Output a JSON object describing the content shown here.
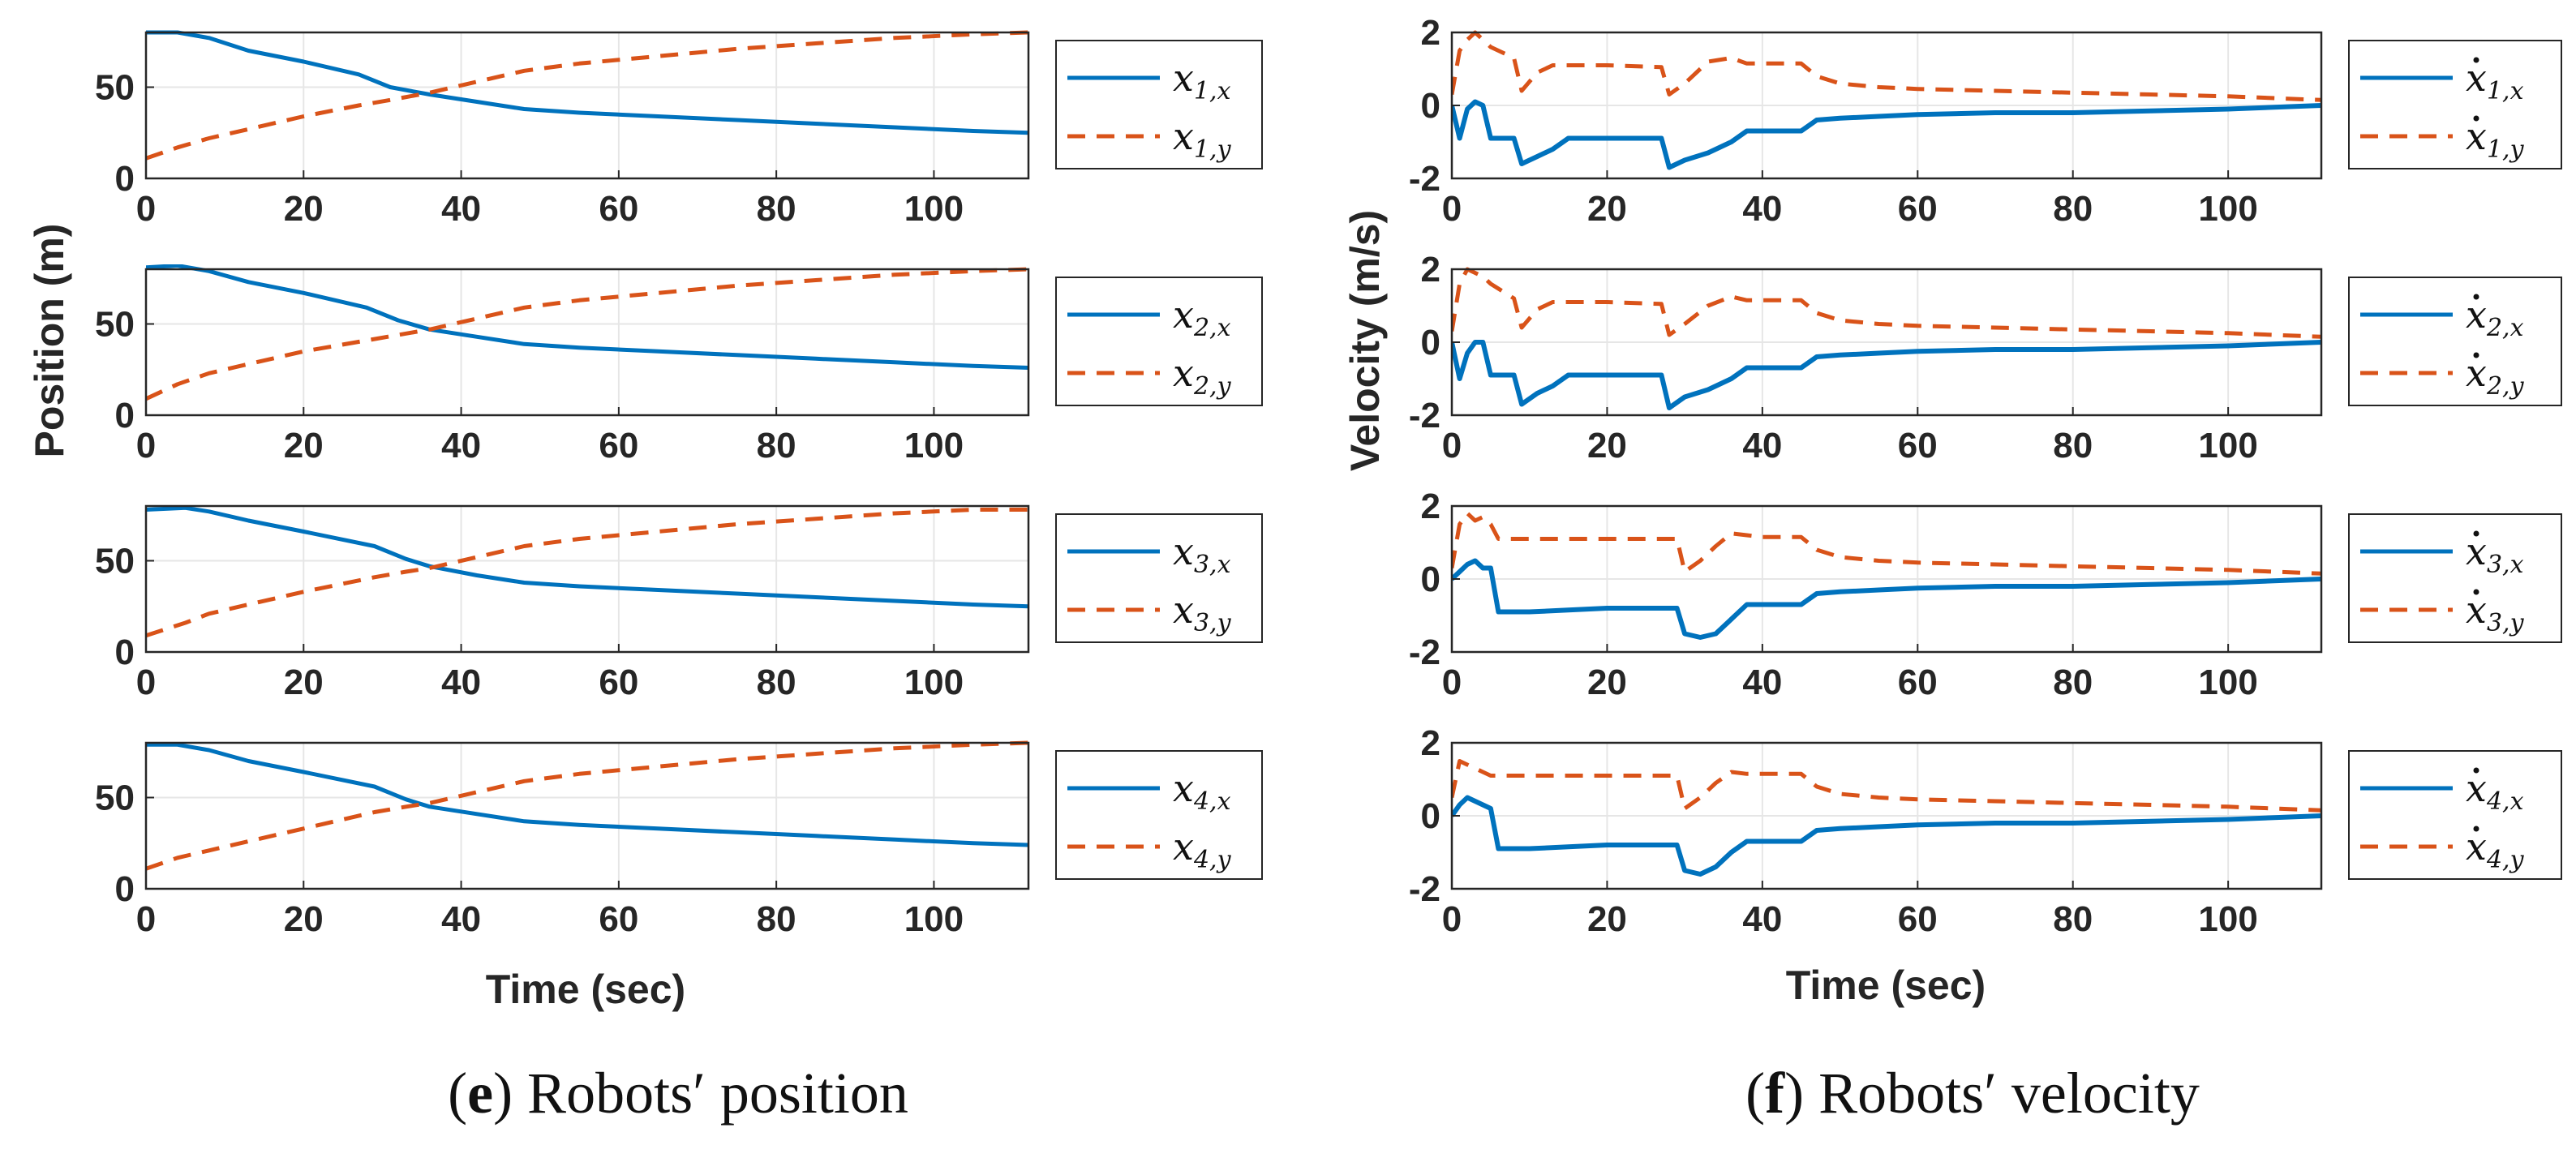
{
  "colors": {
    "x_series": "#0072BD",
    "y_series": "#D95319",
    "grid": "#e6e6e6",
    "axis": "#262626"
  },
  "left_panel": {
    "ylabel": "Position (m)",
    "xlabel": "Time (sec)",
    "caption_letter": "e",
    "caption_text": " Robots′ position"
  },
  "right_panel": {
    "ylabel": "Velocity (m/s)",
    "xlabel": "Time (sec)",
    "caption_letter": "f",
    "caption_text": " Robots′ velocity"
  },
  "chart_data": [
    {
      "type": "line",
      "panel": "e",
      "robot": 1,
      "xlim": [
        0,
        112
      ],
      "ylim": [
        0,
        80
      ],
      "xticks": [
        "0",
        "20",
        "40",
        "60",
        "80",
        "100"
      ],
      "yticks": [
        "0",
        "50"
      ],
      "x": [
        0,
        4,
        8,
        13,
        20,
        27,
        31,
        36,
        42,
        48,
        55,
        65,
        75,
        85,
        95,
        105,
        112
      ],
      "series": [
        {
          "name": "x",
          "sub": "1,x",
          "dot": false,
          "style": "solid",
          "values": [
            80,
            80,
            77,
            70,
            64,
            57,
            50,
            46,
            42,
            38,
            36,
            34,
            32,
            30,
            28,
            26,
            25
          ]
        },
        {
          "name": "x",
          "sub": "1,y",
          "dot": false,
          "style": "dashed",
          "values": [
            11,
            17,
            22,
            27,
            34,
            40,
            43,
            47,
            53,
            59,
            63,
            67,
            71,
            74,
            77,
            79,
            80
          ]
        }
      ]
    },
    {
      "type": "line",
      "panel": "e",
      "robot": 2,
      "xlim": [
        0,
        112
      ],
      "ylim": [
        0,
        80
      ],
      "xticks": [
        "0",
        "20",
        "40",
        "60",
        "80",
        "100"
      ],
      "yticks": [
        "0",
        "50"
      ],
      "x": [
        0,
        4,
        8,
        13,
        20,
        28,
        32,
        36,
        42,
        48,
        55,
        65,
        75,
        85,
        95,
        105,
        112
      ],
      "series": [
        {
          "name": "x",
          "sub": "2,x",
          "dot": false,
          "style": "solid",
          "values": [
            81,
            82,
            79,
            73,
            67,
            59,
            52,
            47,
            43,
            39,
            37,
            35,
            33,
            31,
            29,
            27,
            26
          ]
        },
        {
          "name": "x",
          "sub": "2,y",
          "dot": false,
          "style": "dashed",
          "values": [
            9,
            17,
            23,
            28,
            35,
            41,
            44,
            47,
            53,
            59,
            63,
            67,
            71,
            74,
            77,
            79,
            80
          ]
        }
      ]
    },
    {
      "type": "line",
      "panel": "e",
      "robot": 3,
      "xlim": [
        0,
        112
      ],
      "ylim": [
        0,
        80
      ],
      "xticks": [
        "0",
        "20",
        "40",
        "60",
        "80",
        "100"
      ],
      "yticks": [
        "0",
        "50"
      ],
      "x": [
        0,
        5,
        8,
        13,
        20,
        29,
        33,
        36,
        42,
        48,
        55,
        65,
        75,
        85,
        95,
        105,
        112
      ],
      "series": [
        {
          "name": "x",
          "sub": "3,x",
          "dot": false,
          "style": "solid",
          "values": [
            78,
            79,
            77,
            72,
            66,
            58,
            51,
            47,
            42,
            38,
            36,
            34,
            32,
            30,
            28,
            26,
            25
          ]
        },
        {
          "name": "x",
          "sub": "3,y",
          "dot": false,
          "style": "dashed",
          "values": [
            9,
            16,
            21,
            26,
            33,
            41,
            44,
            46,
            52,
            58,
            62,
            66,
            70,
            73,
            76,
            78,
            78
          ]
        }
      ]
    },
    {
      "type": "line",
      "panel": "e",
      "robot": 4,
      "xlim": [
        0,
        112
      ],
      "ylim": [
        0,
        80
      ],
      "xticks": [
        "0",
        "20",
        "40",
        "60",
        "80",
        "100"
      ],
      "yticks": [
        "0",
        "50"
      ],
      "x": [
        0,
        4,
        8,
        13,
        20,
        29,
        33,
        36,
        42,
        48,
        55,
        65,
        75,
        85,
        95,
        105,
        112
      ],
      "series": [
        {
          "name": "x",
          "sub": "4,x",
          "dot": false,
          "style": "solid",
          "values": [
            79,
            79,
            76,
            70,
            64,
            56,
            49,
            45,
            41,
            37,
            35,
            33,
            31,
            29,
            27,
            25,
            24
          ]
        },
        {
          "name": "x",
          "sub": "4,y",
          "dot": false,
          "style": "dashed",
          "values": [
            11,
            17,
            21,
            26,
            33,
            42,
            45,
            47,
            53,
            59,
            63,
            67,
            71,
            74,
            77,
            79,
            80
          ]
        }
      ]
    },
    {
      "type": "line",
      "panel": "f",
      "robot": 1,
      "xlim": [
        0,
        112
      ],
      "ylim": [
        -2,
        2
      ],
      "xticks": [
        "0",
        "20",
        "40",
        "60",
        "80",
        "100"
      ],
      "yticks": [
        "-2",
        "0",
        "2"
      ],
      "x": [
        0,
        1,
        2,
        3,
        4,
        5,
        8,
        9,
        11,
        13,
        15,
        20,
        27,
        28,
        30,
        33,
        36,
        38,
        40,
        45,
        47,
        50,
        55,
        60,
        70,
        80,
        90,
        100,
        112
      ],
      "series": [
        {
          "name": "x",
          "sub": "1,x",
          "dot": true,
          "style": "solid",
          "values": [
            0,
            -0.9,
            -0.1,
            0.1,
            0,
            -0.9,
            -0.9,
            -1.6,
            -1.4,
            -1.2,
            -0.9,
            -0.9,
            -0.9,
            -1.7,
            -1.5,
            -1.3,
            -1,
            -0.7,
            -0.7,
            -0.7,
            -0.4,
            -0.35,
            -0.3,
            -0.25,
            -0.2,
            -0.2,
            -0.15,
            -0.1,
            0
          ]
        },
        {
          "name": "x",
          "sub": "1,y",
          "dot": true,
          "style": "dashed",
          "values": [
            0.3,
            1.5,
            1.8,
            2,
            1.8,
            1.6,
            1.3,
            0.4,
            0.9,
            1.1,
            1.1,
            1.1,
            1.05,
            0.3,
            0.6,
            1.2,
            1.3,
            1.15,
            1.15,
            1.15,
            0.8,
            0.6,
            0.5,
            0.45,
            0.4,
            0.35,
            0.3,
            0.25,
            0.15
          ]
        }
      ]
    },
    {
      "type": "line",
      "panel": "f",
      "robot": 2,
      "xlim": [
        0,
        112
      ],
      "ylim": [
        -2,
        2
      ],
      "xticks": [
        "0",
        "20",
        "40",
        "60",
        "80",
        "100"
      ],
      "yticks": [
        "-2",
        "0",
        "2"
      ],
      "x": [
        0,
        1,
        2,
        3,
        4,
        5,
        8,
        9,
        11,
        13,
        15,
        20,
        27,
        28,
        30,
        33,
        36,
        38,
        40,
        45,
        47,
        50,
        55,
        60,
        70,
        80,
        90,
        100,
        112
      ],
      "series": [
        {
          "name": "x",
          "sub": "2,x",
          "dot": true,
          "style": "solid",
          "values": [
            0,
            -1,
            -0.3,
            0,
            0,
            -0.9,
            -0.9,
            -1.7,
            -1.4,
            -1.2,
            -0.9,
            -0.9,
            -0.9,
            -1.8,
            -1.5,
            -1.3,
            -1,
            -0.7,
            -0.7,
            -0.7,
            -0.4,
            -0.35,
            -0.3,
            -0.25,
            -0.2,
            -0.2,
            -0.15,
            -0.1,
            0
          ]
        },
        {
          "name": "x",
          "sub": "2,y",
          "dot": true,
          "style": "dashed",
          "values": [
            0.3,
            1.6,
            2,
            1.9,
            1.8,
            1.6,
            1.2,
            0.4,
            0.9,
            1.1,
            1.1,
            1.1,
            1.05,
            0.2,
            0.5,
            1,
            1.25,
            1.15,
            1.15,
            1.15,
            0.8,
            0.6,
            0.5,
            0.45,
            0.4,
            0.35,
            0.3,
            0.25,
            0.15
          ]
        }
      ]
    },
    {
      "type": "line",
      "panel": "f",
      "robot": 3,
      "xlim": [
        0,
        112
      ],
      "ylim": [
        -2,
        2
      ],
      "xticks": [
        "0",
        "20",
        "40",
        "60",
        "80",
        "100"
      ],
      "yticks": [
        "-2",
        "0",
        "2"
      ],
      "x": [
        0,
        1,
        2,
        3,
        4,
        5,
        6,
        7,
        10,
        15,
        20,
        25,
        29,
        30,
        32,
        34,
        36,
        38,
        40,
        45,
        47,
        50,
        55,
        60,
        70,
        80,
        90,
        100,
        112
      ],
      "series": [
        {
          "name": "x",
          "sub": "3,x",
          "dot": true,
          "style": "solid",
          "values": [
            0,
            0.2,
            0.4,
            0.5,
            0.3,
            0.3,
            -0.9,
            -0.9,
            -0.9,
            -0.85,
            -0.8,
            -0.8,
            -0.8,
            -1.5,
            -1.6,
            -1.5,
            -1.1,
            -0.7,
            -0.7,
            -0.7,
            -0.4,
            -0.35,
            -0.3,
            -0.25,
            -0.2,
            -0.2,
            -0.15,
            -0.1,
            0
          ]
        },
        {
          "name": "x",
          "sub": "3,y",
          "dot": true,
          "style": "dashed",
          "values": [
            0.3,
            1.5,
            1.8,
            1.6,
            1.7,
            1.5,
            1.1,
            1.1,
            1.1,
            1.1,
            1.1,
            1.1,
            1.1,
            0.2,
            0.5,
            0.9,
            1.25,
            1.2,
            1.15,
            1.15,
            0.8,
            0.6,
            0.5,
            0.45,
            0.4,
            0.35,
            0.3,
            0.25,
            0.15
          ]
        }
      ]
    },
    {
      "type": "line",
      "panel": "f",
      "robot": 4,
      "xlim": [
        0,
        112
      ],
      "ylim": [
        -2,
        2
      ],
      "xticks": [
        "0",
        "20",
        "40",
        "60",
        "80",
        "100"
      ],
      "yticks": [
        "-2",
        "0",
        "2"
      ],
      "x": [
        0,
        1,
        2,
        3,
        4,
        5,
        6,
        7,
        10,
        15,
        20,
        25,
        29,
        30,
        32,
        34,
        36,
        38,
        40,
        45,
        47,
        50,
        55,
        60,
        70,
        80,
        90,
        100,
        112
      ],
      "series": [
        {
          "name": "x",
          "sub": "4,x",
          "dot": true,
          "style": "solid",
          "values": [
            0,
            0.3,
            0.5,
            0.4,
            0.3,
            0.2,
            -0.9,
            -0.9,
            -0.9,
            -0.85,
            -0.8,
            -0.8,
            -0.8,
            -1.5,
            -1.6,
            -1.4,
            -1,
            -0.7,
            -0.7,
            -0.7,
            -0.4,
            -0.35,
            -0.3,
            -0.25,
            -0.2,
            -0.2,
            -0.15,
            -0.1,
            0
          ]
        },
        {
          "name": "x",
          "sub": "4,y",
          "dot": true,
          "style": "dashed",
          "values": [
            0.5,
            1.5,
            1.4,
            1.3,
            1.2,
            1.1,
            1.1,
            1.1,
            1.1,
            1.1,
            1.1,
            1.1,
            1.1,
            0.2,
            0.5,
            0.9,
            1.2,
            1.15,
            1.15,
            1.15,
            0.8,
            0.6,
            0.5,
            0.45,
            0.4,
            0.35,
            0.3,
            0.25,
            0.15
          ]
        }
      ]
    }
  ]
}
